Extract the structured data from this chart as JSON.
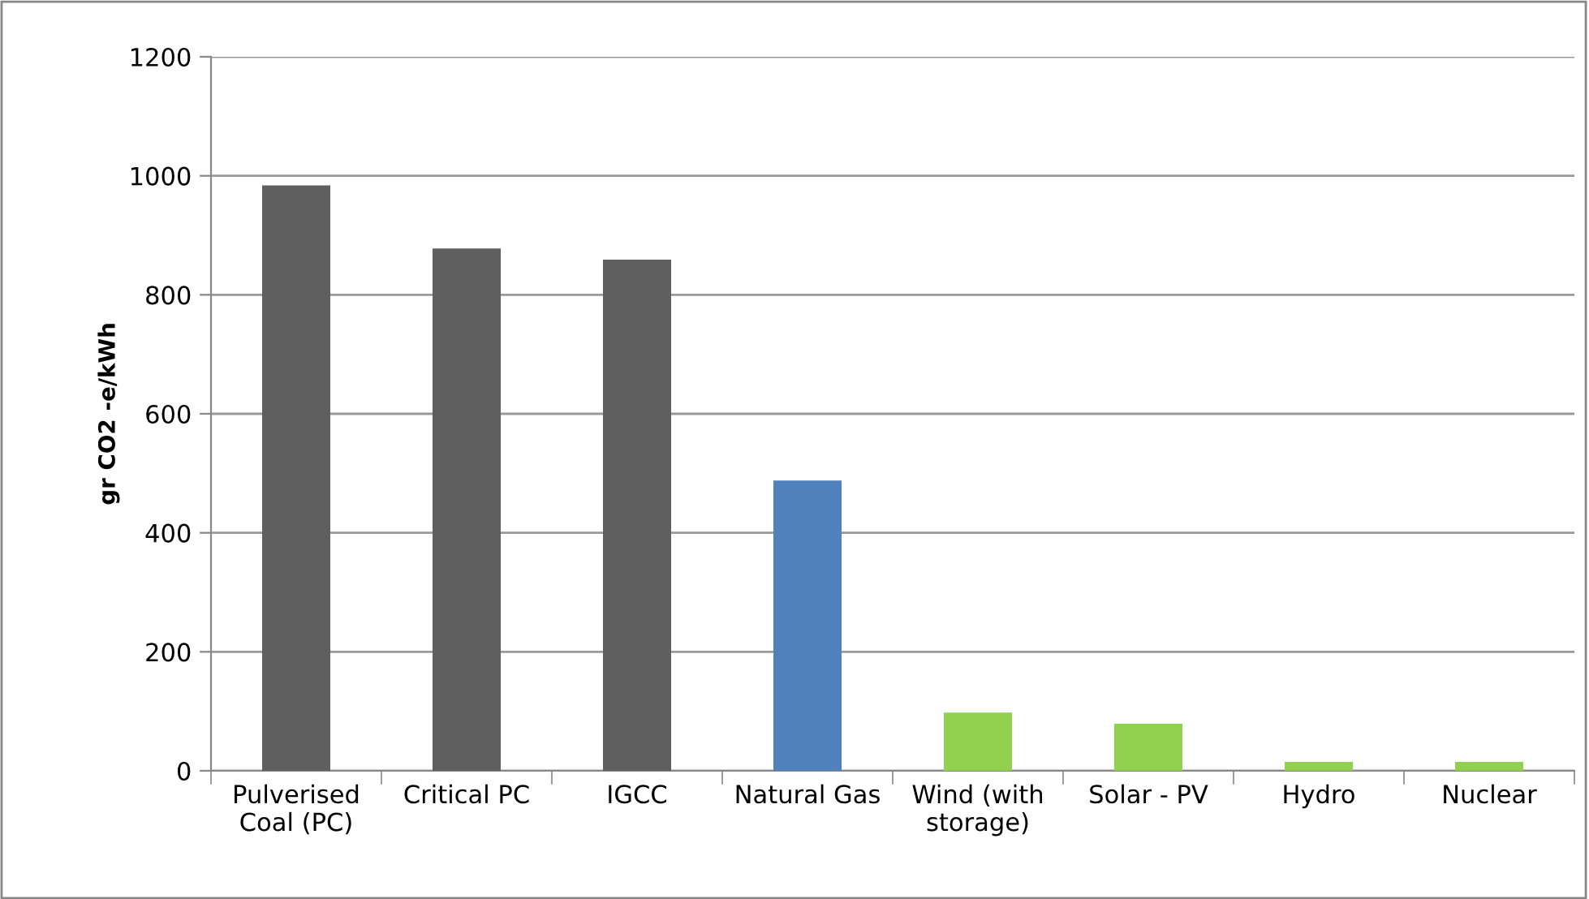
{
  "chart_data": {
    "type": "bar",
    "ylabel": "gr CO2 -e/kWh",
    "categories": [
      "Pulverised\nCoal (PC)",
      "Critical PC",
      "IGCC",
      "Natural Gas",
      "Wind (with\nstorage)",
      "Solar - PV",
      "Hydro",
      "Nuclear"
    ],
    "values": [
      984,
      878,
      859,
      488,
      98,
      79,
      15,
      15
    ],
    "colors": [
      "#5f5f5f",
      "#5f5f5f",
      "#5f5f5f",
      "#4f81bd",
      "#92d050",
      "#92d050",
      "#92d050",
      "#92d050"
    ],
    "ylim": [
      0,
      1200
    ],
    "yticks": [
      0,
      200,
      400,
      600,
      800,
      1000,
      1200
    ],
    "grid": "y",
    "legend": false
  }
}
